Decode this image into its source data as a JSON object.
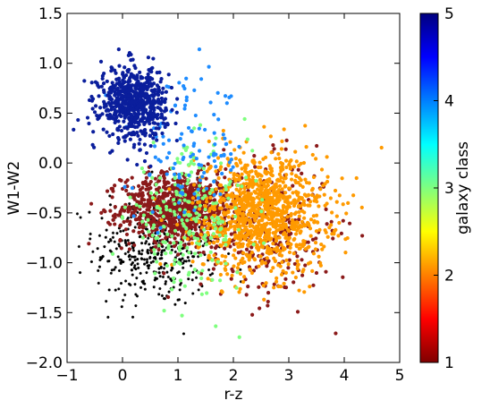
{
  "chart_data": {
    "type": "scatter",
    "title": "",
    "xlabel": "r-z",
    "ylabel": "W1-W2",
    "xlim": [
      -1,
      5
    ],
    "ylim": [
      -2.0,
      1.5
    ],
    "x_ticks": [
      "−1",
      "0",
      "1",
      "2",
      "3",
      "4",
      "5"
    ],
    "y_ticks": [
      "−2.0",
      "−1.5",
      "−1.0",
      "−0.5",
      "0.0",
      "0.5",
      "1.0",
      "1.5"
    ],
    "grid": false,
    "colorbar": {
      "label": "galaxy class",
      "range": [
        1,
        5
      ],
      "ticks": [
        "1",
        "2",
        "3",
        "4",
        "5"
      ],
      "colormap": "jet",
      "colors": [
        "#7f0000",
        "#ff0000",
        "#ff7f00",
        "#ffff00",
        "#7fff7f",
        "#00ffff",
        "#007fff",
        "#0000ff",
        "#00007f"
      ]
    },
    "series": [
      {
        "marker": "star",
        "color": "#000000",
        "x_center": 0.6,
        "y_center": -0.85,
        "x_spread": 0.55,
        "y_spread": 0.3,
        "count": 420
      },
      {
        "class": 1,
        "marker": "circle",
        "color": "#8b1a1a",
        "x_center": 1.0,
        "y_center": -0.45,
        "x_spread": 0.5,
        "y_spread": 0.17,
        "count": 900
      },
      {
        "class": 1,
        "marker": "circle",
        "color": "#8b1a1a",
        "x_center": 2.6,
        "y_center": -0.7,
        "x_spread": 0.6,
        "y_spread": 0.35,
        "count": 260
      },
      {
        "class": 2,
        "marker": "circle",
        "color": "#ff9a00",
        "x_center": 2.5,
        "y_center": -0.5,
        "x_spread": 0.6,
        "y_spread": 0.3,
        "count": 1100
      },
      {
        "class": 3,
        "marker": "circle",
        "color": "#7fff7f",
        "x_center": 1.2,
        "y_center": -0.55,
        "x_spread": 0.55,
        "y_spread": 0.35,
        "count": 230
      },
      {
        "class": 4,
        "marker": "circle",
        "color": "#1e8cff",
        "x_center": 1.2,
        "y_center": 0.1,
        "x_spread": 0.5,
        "y_spread": 0.35,
        "count": 120
      },
      {
        "class": 5,
        "marker": "circle",
        "color": "#0a1e9c",
        "x_center": 0.2,
        "y_center": 0.6,
        "x_spread": 0.3,
        "y_spread": 0.18,
        "count": 650
      }
    ]
  }
}
